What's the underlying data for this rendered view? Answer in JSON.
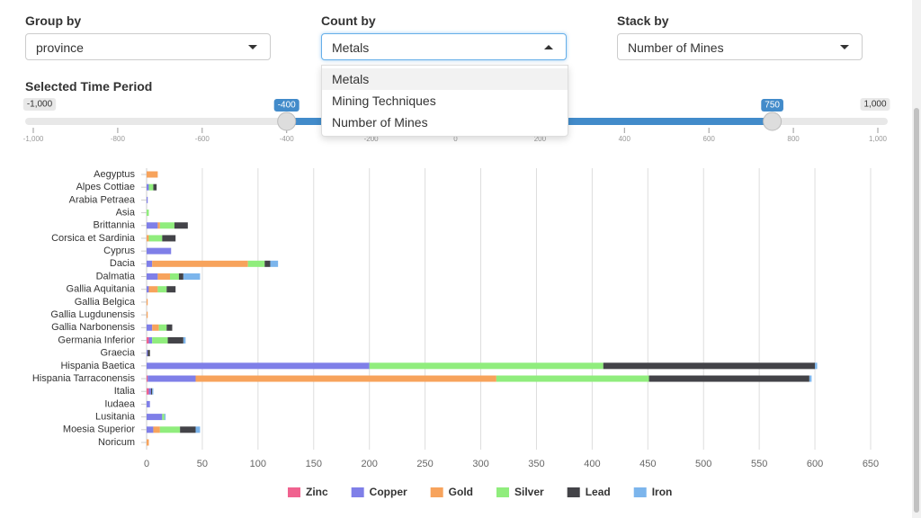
{
  "controls": {
    "group_by": {
      "label": "Group by",
      "value": "province"
    },
    "count_by": {
      "label": "Count by",
      "value": "Metals",
      "options": [
        "Metals",
        "Mining Techniques",
        "Number of Mines"
      ]
    },
    "stack_by": {
      "label": "Stack by",
      "value": "Number of Mines"
    }
  },
  "time_period": {
    "label": "Selected Time Period",
    "min": {
      "value": -1000,
      "label": "-1,000"
    },
    "max": {
      "value": 1000,
      "label": "1,000"
    },
    "from": -400,
    "to": 750,
    "ticks": [
      {
        "value": -1000,
        "label": "-1,000"
      },
      -800,
      -600,
      -400,
      -200,
      0,
      200,
      400,
      600,
      800,
      {
        "value": 1000,
        "label": "1,000"
      }
    ]
  },
  "chart_data": {
    "type": "bar",
    "orientation": "horizontal",
    "stacked": true,
    "categories": [
      "Aegyptus",
      "Alpes Cottiae",
      "Arabia Petraea",
      "Asia",
      "Brittannia",
      "Corsica et Sardinia",
      "Cyprus",
      "Dacia",
      "Dalmatia",
      "Gallia Aquitania",
      "Gallia Belgica",
      "Gallia Lugdunensis",
      "Gallia Narbonensis",
      "Germania Inferior",
      "Graecia",
      "Hispania Baetica",
      "Hispania Tarraconensis",
      "Italia",
      "Iudaea",
      "Lusitania",
      "Moesia Superior",
      "Noricum"
    ],
    "series": [
      {
        "name": "Zinc",
        "color": "#f0628f",
        "values": [
          0,
          0,
          0,
          0,
          0,
          0,
          0,
          0,
          0,
          0,
          0,
          0,
          0,
          2,
          0,
          0,
          1,
          2,
          0,
          0,
          0,
          0
        ]
      },
      {
        "name": "Copper",
        "color": "#7f7fe8",
        "values": [
          0,
          2,
          1,
          0,
          10,
          0,
          22,
          5,
          10,
          2,
          0,
          0,
          5,
          3,
          1,
          200,
          43,
          2,
          3,
          14,
          6,
          0
        ]
      },
      {
        "name": "Gold",
        "color": "#f7a35c",
        "values": [
          10,
          0,
          0,
          0,
          2,
          2,
          0,
          86,
          11,
          8,
          1,
          1,
          6,
          0,
          0,
          0,
          270,
          0,
          0,
          0,
          6,
          2
        ]
      },
      {
        "name": "Silver",
        "color": "#90ed7d",
        "values": [
          0,
          4,
          0,
          2,
          13,
          12,
          0,
          15,
          8,
          8,
          0,
          0,
          7,
          14,
          0,
          210,
          137,
          0,
          0,
          2,
          18,
          0
        ]
      },
      {
        "name": "Lead",
        "color": "#434348",
        "values": [
          0,
          3,
          0,
          0,
          12,
          12,
          0,
          5,
          4,
          8,
          0,
          0,
          5,
          14,
          2,
          190,
          144,
          1,
          0,
          0,
          14,
          0
        ]
      },
      {
        "name": "Iron",
        "color": "#7cb5ec",
        "values": [
          0,
          0,
          0,
          0,
          0,
          0,
          0,
          7,
          15,
          0,
          0,
          0,
          0,
          2,
          0,
          2,
          2,
          1,
          0,
          1,
          4,
          0
        ]
      }
    ],
    "xlim": [
      0,
      650
    ],
    "xticks": [
      0,
      50,
      100,
      150,
      200,
      250,
      300,
      350,
      400,
      450,
      500,
      550,
      600,
      650
    ],
    "grid": true
  }
}
